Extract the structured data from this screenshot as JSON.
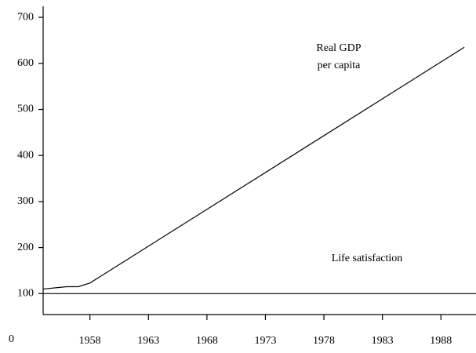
{
  "chart_data": {
    "type": "line",
    "annotations": [
      "Real GDP",
      "per capita",
      "Life satisfaction"
    ],
    "series": [
      {
        "name": "Real GDP per capita",
        "color": "#000000",
        "x": [
          1954,
          1956,
          1957,
          1958,
          1990
        ],
        "values": [
          110,
          115,
          115,
          123,
          635
        ]
      },
      {
        "name": "Life satisfaction",
        "color": "#000000",
        "x": [
          1954,
          1991
        ],
        "values": [
          100,
          100
        ]
      }
    ],
    "xlim": [
      1954,
      1991
    ],
    "xticks": [
      1958,
      1963,
      1968,
      1973,
      1978,
      1983,
      1988
    ],
    "ylim": [
      0,
      724
    ],
    "yticks": [
      0,
      100,
      200,
      300,
      400,
      500,
      600,
      700
    ],
    "grid": false
  }
}
